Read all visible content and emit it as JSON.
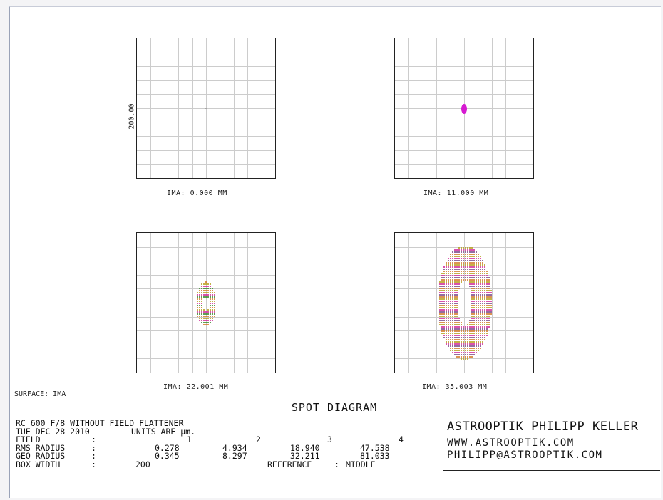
{
  "plots": [
    {
      "caption": "IMA: 0.000 MM",
      "spot": {
        "shape": "dot",
        "color": "#999999"
      }
    },
    {
      "caption": "IMA: 11.000 MM",
      "spot": {
        "shape": "ellipse",
        "color": "#d61ad1"
      }
    },
    {
      "caption": "IMA: 22.001 MM",
      "spot": {
        "shape": "ring",
        "colors": [
          "#d47a2a",
          "#b8a01e",
          "#d22a9a",
          "#3a8a2a"
        ]
      }
    },
    {
      "caption": "IMA: 35.003 MM",
      "spot": {
        "shape": "ring",
        "colors": [
          "#d47a2a",
          "#b8a01e",
          "#d22a9a",
          "#7a4a8a"
        ]
      }
    }
  ],
  "scale_label": "200.00",
  "surface_label": "SURFACE: IMA",
  "grid_color": "#cccccc",
  "title": "SPOT DIAGRAM",
  "info": {
    "line1": "RC 600 F/8 WITHOUT FIELD FLATTENER",
    "date": "TUE DEC 28 2010",
    "units": "UNITS ARE µm.",
    "field_label": "FIELD",
    "field_values": [
      "1",
      "2",
      "3",
      "4"
    ],
    "rms_label": "RMS RADIUS",
    "rms_values": [
      "0.278",
      "4.934",
      "18.940",
      "47.538"
    ],
    "geo_label": "GEO RADIUS",
    "geo_values": [
      "0.345",
      "8.297",
      "32.211",
      "81.033"
    ],
    "box_label": "BOX WIDTH",
    "box_value": "200",
    "reference_label": "REFERENCE",
    "reference_value": "MIDDLE",
    "colon": ":"
  },
  "company": {
    "name": "ASTROOPTIK PHILIPP KELLER",
    "web": "WWW.ASTROOPTIK.COM",
    "email": "PHILIPP@ASTROOPTIK.COM"
  }
}
